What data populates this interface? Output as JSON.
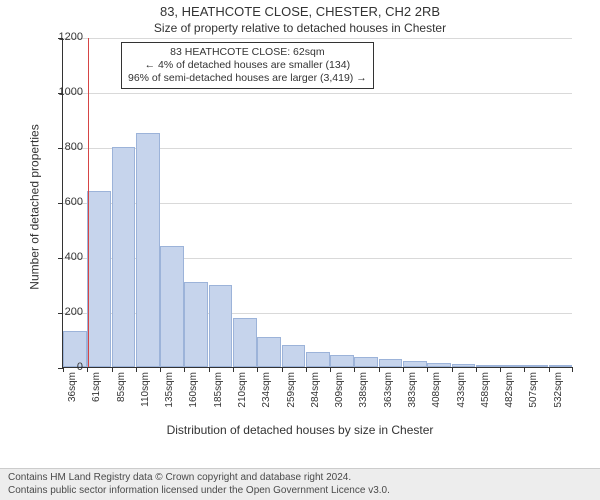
{
  "title": {
    "main": "83, HEATHCOTE CLOSE, CHESTER, CH2 2RB",
    "sub": "Size of property relative to detached houses in Chester",
    "main_fontsize": 13,
    "sub_fontsize": 12,
    "color": "#333333"
  },
  "chart": {
    "type": "histogram",
    "background_color": "#ffffff",
    "grid_color": "#d9d9d9",
    "axis_color": "#333333",
    "bar_fill": "#c6d4ec",
    "bar_border": "#9cb3d9",
    "reference_line_color": "#d64545",
    "reference_value_sqm": 62,
    "ylabel": "Number of detached properties",
    "xlabel": "Distribution of detached houses by size in Chester",
    "label_fontsize": 12,
    "ylim": [
      0,
      1200
    ],
    "ytick_step": 200,
    "yticks": [
      0,
      200,
      400,
      600,
      800,
      1000,
      1200
    ],
    "x_categories": [
      "36sqm",
      "61sqm",
      "85sqm",
      "110sqm",
      "135sqm",
      "160sqm",
      "185sqm",
      "210sqm",
      "234sqm",
      "259sqm",
      "284sqm",
      "309sqm",
      "338sqm",
      "363sqm",
      "383sqm",
      "408sqm",
      "433sqm",
      "458sqm",
      "482sqm",
      "507sqm",
      "532sqm"
    ],
    "values": [
      130,
      640,
      800,
      850,
      440,
      310,
      300,
      180,
      110,
      80,
      55,
      45,
      35,
      30,
      22,
      16,
      10,
      8,
      2,
      2,
      8
    ],
    "tick_fontsize": 11
  },
  "annotation": {
    "lines": [
      "83 HEATHCOTE CLOSE: 62sqm",
      "← 4% of detached houses are smaller (134)",
      "96% of semi-detached houses are larger (3,419) →"
    ],
    "border_color": "#333333",
    "background_color": "#ffffff",
    "fontsize": 10.5
  },
  "footer": {
    "line1": "Contains HM Land Registry data © Crown copyright and database right 2024.",
    "line2": "Contains public sector information licensed under the Open Government Licence v3.0.",
    "background_color": "#ededed",
    "text_color": "#4a4a4a",
    "fontsize": 10
  }
}
